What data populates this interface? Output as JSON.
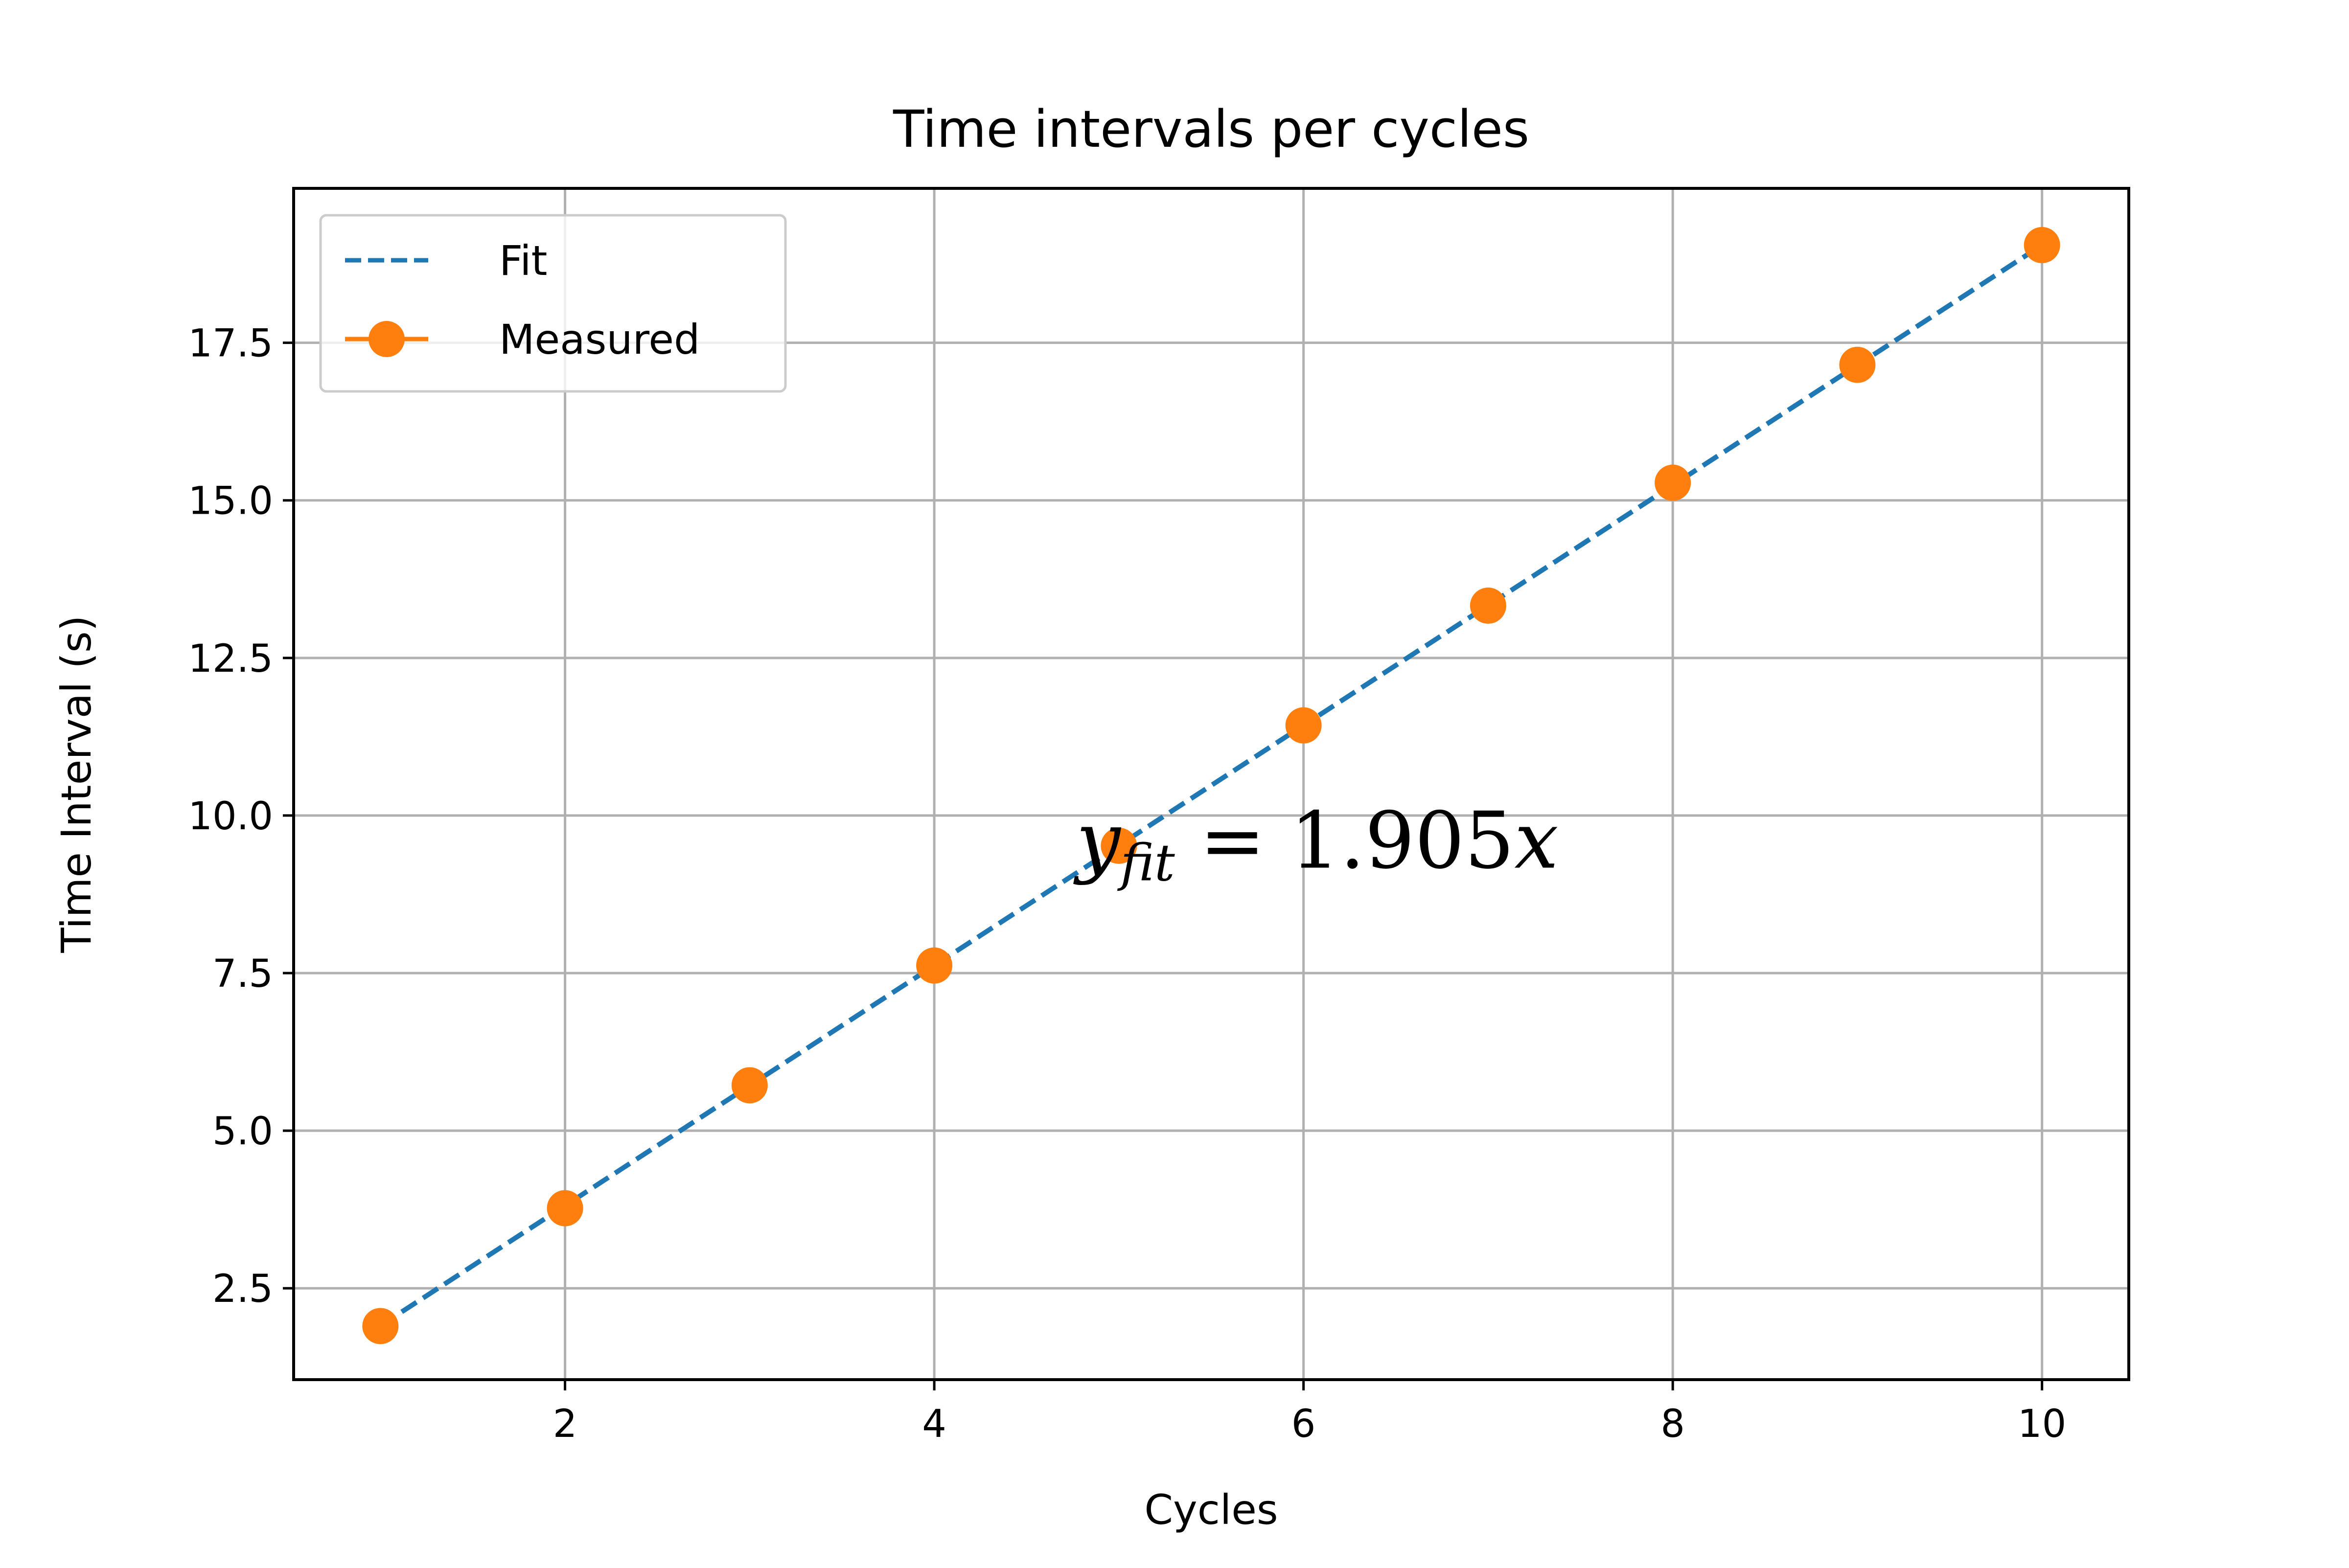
{
  "chart_data": {
    "type": "line",
    "title": "Time intervals per cycles",
    "xlabel": "Cycles",
    "ylabel": "Time Interval (s)",
    "xlim": [
      0.53,
      10.47
    ],
    "ylim": [
      1.05,
      19.95
    ],
    "xticks": [
      2,
      4,
      6,
      8,
      10
    ],
    "xtick_labels": [
      "2",
      "4",
      "6",
      "8",
      "10"
    ],
    "yticks": [
      2.5,
      5.0,
      7.5,
      10.0,
      12.5,
      15.0,
      17.5
    ],
    "ytick_labels": [
      "2.5",
      "5.0",
      "7.5",
      "10.0",
      "12.5",
      "15.0",
      "17.5"
    ],
    "grid": true,
    "legend_position": "upper-left",
    "x": [
      1,
      2,
      3,
      4,
      5,
      6,
      7,
      8,
      9,
      10
    ],
    "series": [
      {
        "name": "Fit",
        "style": "dashed-line",
        "color": "#1f77b4",
        "x": [
          1,
          10
        ],
        "values": [
          1.905,
          19.05
        ]
      },
      {
        "name": "Measured",
        "style": "markers",
        "color": "#ff7f0e",
        "values": [
          1.9,
          3.77,
          5.72,
          7.62,
          9.52,
          11.43,
          13.33,
          15.28,
          17.15,
          19.05
        ]
      }
    ],
    "annotation": {
      "var": "y",
      "subscript": "fit",
      "rest": " = 1.905",
      "suffix": "x",
      "at_x": 8.4,
      "at_y": 9.6
    }
  }
}
